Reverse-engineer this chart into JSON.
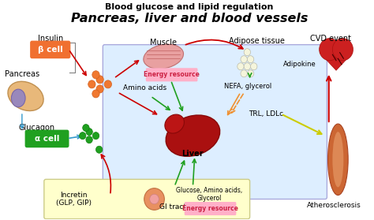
{
  "title_top": "Blood glucose and lipid regulation",
  "title_main": "Pancreas, liver and blood vessels",
  "bg_color": "#ffffff",
  "label_insulin": "Insulin",
  "label_beta_cell": "β cell",
  "label_pancreas": "Pancreas",
  "label_glucagon": "Glucagon",
  "label_alpha_cell": "α cell",
  "label_incretin": "Incretin\n(GLP, GIP)",
  "label_gi_tract": "GI tract",
  "label_muscle": "Muscle",
  "label_amino_acids": "Amino acids",
  "label_energy_muscle": "Energy resource",
  "label_adipose": "Adipose tissue",
  "label_adipokine": "Adipokine",
  "label_nefa": "NEFA, glycerol",
  "label_trl": "TRL, LDLc",
  "label_liver": "Liver",
  "label_glucose_aa": "Glucose, Amino acids,\nGlycerol",
  "label_energy_gi": "Energy resource",
  "label_cvd": "CVD event",
  "label_atherosclerosis": "Atherosclerosis",
  "color_beta_box": "#f07030",
  "color_alpha_box": "#20a020",
  "color_energy_box": "#ffb0c8",
  "color_light_blue_bg": "#ddeeff",
  "color_yellow_bg": "#ffffcc",
  "color_orange_circles": "#f07830",
  "color_green_circles": "#20a020",
  "color_arrow_red": "#cc0000",
  "color_arrow_blue": "#3399cc",
  "color_arrow_green": "#20a020",
  "color_arrow_orange": "#f09030",
  "color_arrow_yellow": "#cccc00"
}
